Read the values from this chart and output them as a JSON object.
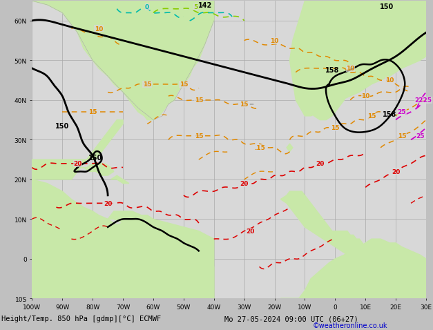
{
  "title_left": "Height/Temp. 850 hPa [gdmp][°C] ECMWF",
  "title_right": "Mo 27-05-2024 09:00 UTC (06+27)",
  "credit": "©weatheronline.co.uk",
  "sea_color": "#d8d8d8",
  "land_color": "#c8e8a8",
  "land_outline": "#aaaaaa",
  "grid_color": "#aaaaaa",
  "black_contour_color": "#000000",
  "orange_color": "#e08800",
  "red_color": "#dd0000",
  "magenta_color": "#cc00cc",
  "lime_color": "#88cc00",
  "teal_color": "#00bbaa",
  "figsize": [
    6.34,
    4.9
  ],
  "dpi": 100,
  "xlim": [
    -100,
    30
  ],
  "ylim": [
    -10,
    65
  ],
  "xticks": [
    -100,
    -90,
    -80,
    -70,
    -60,
    -50,
    -40,
    -30,
    -20,
    -10,
    0,
    10,
    20,
    30
  ],
  "yticks": [
    -10,
    0,
    10,
    20,
    30,
    40,
    50,
    60
  ],
  "xlabel_step": 10,
  "ylabel_step": 10,
  "font_size": 7,
  "label_font_size": 6.5,
  "contour_lw": 1.6,
  "temp_lw": 1.1
}
